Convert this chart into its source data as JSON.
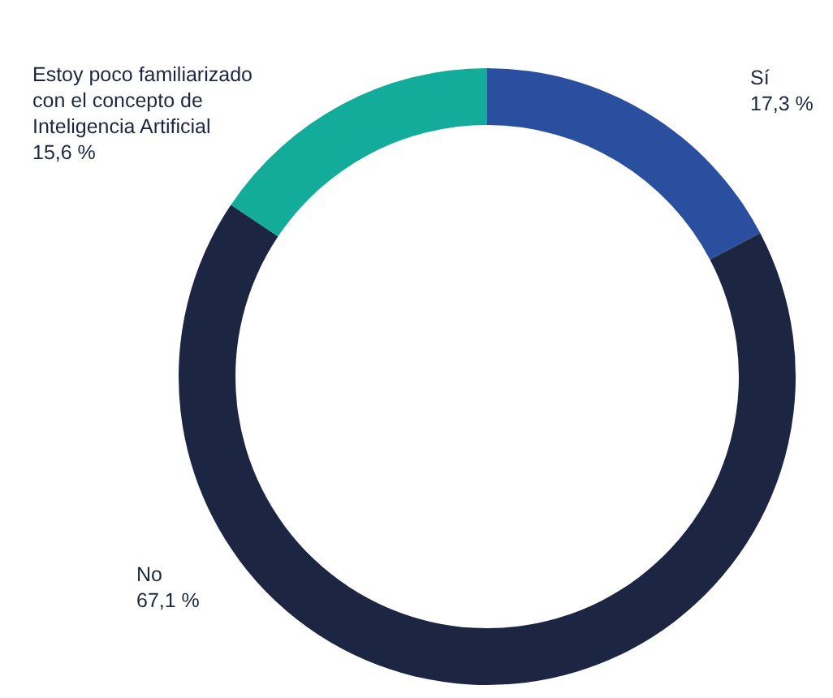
{
  "chart_data": {
    "type": "donut",
    "categories": [
      "Sí",
      "No",
      "Estoy poco familiarizado con el concepto de Inteligencia Artificial"
    ],
    "values": [
      17.3,
      67.1,
      15.6
    ],
    "value_labels": [
      "17,3 %",
      "67,1 %",
      "15,6 %"
    ],
    "colors": [
      "#2a4f9e",
      "#1c2541",
      "#13ac9a"
    ]
  }
}
